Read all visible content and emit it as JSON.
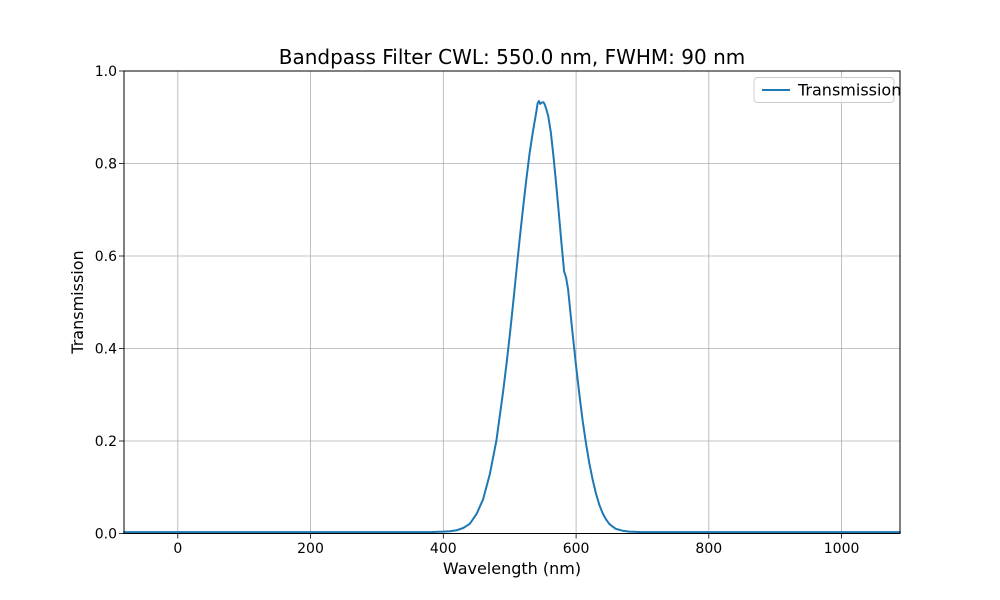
{
  "chart_data": {
    "type": "line",
    "title": "Bandpass Filter CWL: 550.0 nm, FWHM: 90 nm",
    "xlabel": "Wavelength (nm)",
    "ylabel": "Transmission",
    "xlim": [
      -81,
      1088
    ],
    "ylim": [
      0.0,
      1.0
    ],
    "xticks": [
      0,
      200,
      400,
      600,
      800,
      1000
    ],
    "yticks": [
      0.0,
      0.2,
      0.4,
      0.6,
      0.8,
      1.0
    ],
    "grid": true,
    "grid_color": "#b0b0b0",
    "spine_color": "#000000",
    "background_color": "#ffffff",
    "legend": {
      "position": "upper right",
      "entries": [
        {
          "label": "Transmission",
          "color": "#1f77b4"
        }
      ]
    },
    "series": [
      {
        "name": "Transmission",
        "color": "#1f77b4",
        "line_width": 2,
        "points": [
          [
            -81,
            0.003
          ],
          [
            -50,
            0.003
          ],
          [
            0,
            0.003
          ],
          [
            50,
            0.003
          ],
          [
            100,
            0.003
          ],
          [
            150,
            0.003
          ],
          [
            200,
            0.003
          ],
          [
            250,
            0.003
          ],
          [
            300,
            0.003
          ],
          [
            350,
            0.003
          ],
          [
            380,
            0.003
          ],
          [
            400,
            0.004
          ],
          [
            410,
            0.005
          ],
          [
            420,
            0.007
          ],
          [
            430,
            0.012
          ],
          [
            440,
            0.021
          ],
          [
            450,
            0.042
          ],
          [
            460,
            0.074
          ],
          [
            470,
            0.128
          ],
          [
            480,
            0.201
          ],
          [
            490,
            0.305
          ],
          [
            495,
            0.365
          ],
          [
            500,
            0.427
          ],
          [
            505,
            0.495
          ],
          [
            510,
            0.565
          ],
          [
            515,
            0.635
          ],
          [
            520,
            0.703
          ],
          [
            525,
            0.765
          ],
          [
            530,
            0.822
          ],
          [
            535,
            0.869
          ],
          [
            540,
            0.91
          ],
          [
            542,
            0.93
          ],
          [
            544,
            0.935
          ],
          [
            546,
            0.929
          ],
          [
            548,
            0.9315
          ],
          [
            551,
            0.9325
          ],
          [
            553,
            0.927
          ],
          [
            555,
            0.918
          ],
          [
            558,
            0.903
          ],
          [
            562,
            0.868
          ],
          [
            566,
            0.815
          ],
          [
            570,
            0.757
          ],
          [
            574,
            0.693
          ],
          [
            578,
            0.627
          ],
          [
            582,
            0.567
          ],
          [
            585,
            0.553
          ],
          [
            588,
            0.528
          ],
          [
            592,
            0.472
          ],
          [
            596,
            0.416
          ],
          [
            600,
            0.362
          ],
          [
            605,
            0.3
          ],
          [
            610,
            0.243
          ],
          [
            615,
            0.195
          ],
          [
            620,
            0.152
          ],
          [
            625,
            0.116
          ],
          [
            630,
            0.086
          ],
          [
            635,
            0.062
          ],
          [
            640,
            0.044
          ],
          [
            645,
            0.031
          ],
          [
            650,
            0.021
          ],
          [
            655,
            0.015
          ],
          [
            660,
            0.01
          ],
          [
            670,
            0.006
          ],
          [
            680,
            0.004
          ],
          [
            700,
            0.003
          ],
          [
            750,
            0.003
          ],
          [
            800,
            0.003
          ],
          [
            850,
            0.003
          ],
          [
            900,
            0.003
          ],
          [
            950,
            0.003
          ],
          [
            1000,
            0.003
          ],
          [
            1050,
            0.003
          ],
          [
            1088,
            0.003
          ]
        ]
      }
    ]
  }
}
